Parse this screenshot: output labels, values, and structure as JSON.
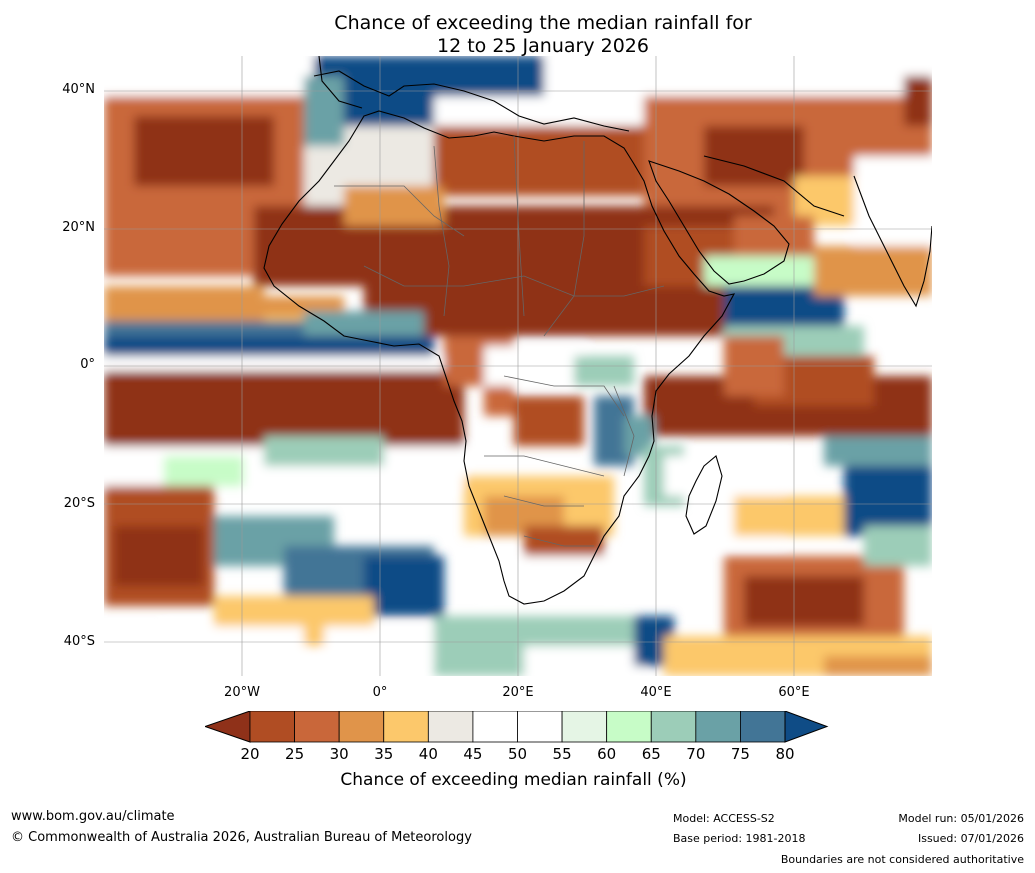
{
  "title": {
    "line1": "Chance of exceeding the median rainfall for",
    "line2": "12 to 25 January 2026"
  },
  "map": {
    "region": "Africa",
    "lat_labels": [
      "40°N",
      "20°N",
      "0°",
      "20°S",
      "40°S"
    ],
    "lon_labels": [
      "20°W",
      "0°",
      "20°E",
      "40°E",
      "60°E"
    ],
    "colors": {
      "dark_brown": "#8f3119",
      "brown": "#b04d23",
      "orange_brown": "#c9673a",
      "orange": "#e0944a",
      "light_orange": "#fcc86b",
      "grey_white": "#ece9e3",
      "white": "#ffffff",
      "pale_green": "#e5f5e5",
      "light_green": "#c7fcc7",
      "teal_light": "#9ccdb8",
      "teal": "#6aa1a6",
      "steel_blue": "#427596",
      "dark_blue": "#0f4c86"
    }
  },
  "colorbar": {
    "ticks": [
      "20",
      "25",
      "30",
      "35",
      "40",
      "45",
      "50",
      "55",
      "60",
      "65",
      "70",
      "75",
      "80"
    ],
    "colors": [
      "#8f3119",
      "#b04d23",
      "#c9673a",
      "#e0944a",
      "#fcc86b",
      "#ece9e3",
      "#ffffff",
      "#ffffff",
      "#e5f5e5",
      "#c7fcc7",
      "#9ccdb8",
      "#6aa1a6",
      "#427596",
      "#0f4c86"
    ],
    "label": "Chance of exceeding median rainfall (%)"
  },
  "footer": {
    "website": "www.bom.gov.au/climate",
    "copyright": "© Commonwealth of Australia 2026, Australian Bureau of Meteorology",
    "model": "Model: ACCESS-S2",
    "base_period": "Base period: 1981-2018",
    "model_run": "Model run: 05/01/2026",
    "issued": "Issued: 07/01/2026",
    "disclaimer": "Boundaries are not considered authoritative"
  }
}
